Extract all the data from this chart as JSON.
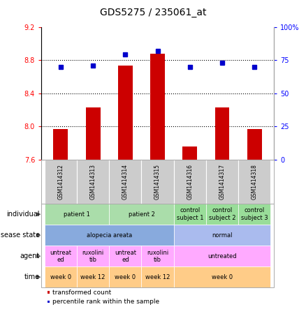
{
  "title": "GDS5275 / 235061_at",
  "samples": [
    "GSM1414312",
    "GSM1414313",
    "GSM1414314",
    "GSM1414315",
    "GSM1414316",
    "GSM1414317",
    "GSM1414318"
  ],
  "bar_values": [
    7.97,
    8.23,
    8.73,
    8.88,
    7.76,
    8.23,
    7.97
  ],
  "dot_values": [
    70,
    71,
    79,
    82,
    70,
    73,
    70
  ],
  "ylim_left": [
    7.6,
    9.2
  ],
  "ylim_right": [
    0,
    100
  ],
  "yticks_left": [
    7.6,
    8.0,
    8.4,
    8.8,
    9.2
  ],
  "yticks_right": [
    0,
    25,
    50,
    75,
    100
  ],
  "bar_color": "#cc0000",
  "dot_color": "#0000cc",
  "bar_bottom": 7.6,
  "hline_values": [
    8.0,
    8.4,
    8.8
  ],
  "annotation_rows": {
    "individual": {
      "label": "individual",
      "groups": [
        {
          "text": "patient 1",
          "span": [
            0,
            2
          ],
          "color": "#aaddaa"
        },
        {
          "text": "patient 2",
          "span": [
            2,
            4
          ],
          "color": "#aaddaa"
        },
        {
          "text": "control\nsubject 1",
          "span": [
            4,
            5
          ],
          "color": "#99dd99"
        },
        {
          "text": "control\nsubject 2",
          "span": [
            5,
            6
          ],
          "color": "#99dd99"
        },
        {
          "text": "control\nsubject 3",
          "span": [
            6,
            7
          ],
          "color": "#99dd99"
        }
      ]
    },
    "disease_state": {
      "label": "disease state",
      "groups": [
        {
          "text": "alopecia areata",
          "span": [
            0,
            4
          ],
          "color": "#88aadd"
        },
        {
          "text": "normal",
          "span": [
            4,
            7
          ],
          "color": "#aabbee"
        }
      ]
    },
    "agent": {
      "label": "agent",
      "groups": [
        {
          "text": "untreat\ned",
          "span": [
            0,
            1
          ],
          "color": "#ffaaff"
        },
        {
          "text": "ruxolini\ntib",
          "span": [
            1,
            2
          ],
          "color": "#ffaaff"
        },
        {
          "text": "untreat\ned",
          "span": [
            2,
            3
          ],
          "color": "#ffaaff"
        },
        {
          "text": "ruxolini\ntib",
          "span": [
            3,
            4
          ],
          "color": "#ffaaff"
        },
        {
          "text": "untreated",
          "span": [
            4,
            7
          ],
          "color": "#ffaaff"
        }
      ]
    },
    "time": {
      "label": "time",
      "groups": [
        {
          "text": "week 0",
          "span": [
            0,
            1
          ],
          "color": "#ffcc88"
        },
        {
          "text": "week 12",
          "span": [
            1,
            2
          ],
          "color": "#ffcc88"
        },
        {
          "text": "week 0",
          "span": [
            2,
            3
          ],
          "color": "#ffcc88"
        },
        {
          "text": "week 12",
          "span": [
            3,
            4
          ],
          "color": "#ffcc88"
        },
        {
          "text": "week 0",
          "span": [
            4,
            7
          ],
          "color": "#ffcc88"
        }
      ]
    }
  },
  "legend_items": [
    {
      "label": "transformed count",
      "color": "#cc0000"
    },
    {
      "label": "percentile rank within the sample",
      "color": "#0000cc"
    }
  ]
}
